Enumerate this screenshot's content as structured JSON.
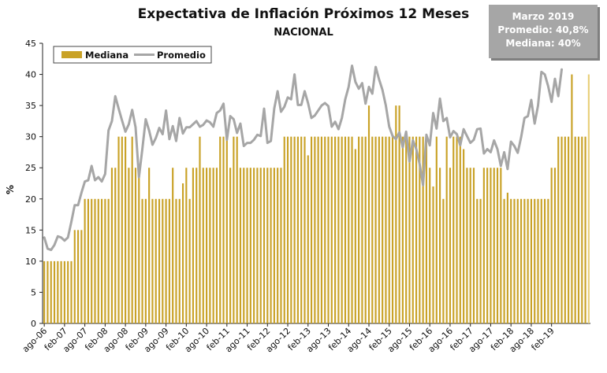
{
  "info_box": {
    "line1": "Marzo 2019",
    "line2": "Promedio: 40,8%",
    "line3": "Mediana: 40%"
  },
  "chart_data": {
    "type": "bar",
    "title": "Expectativa de Inflación Próximos 12 Meses",
    "subtitle": "NACIONAL",
    "ylabel": "%",
    "xlabel": "",
    "ylim": [
      0,
      45
    ],
    "yticks": [
      0,
      5,
      10,
      15,
      20,
      25,
      30,
      35,
      40,
      45
    ],
    "grid": false,
    "legend_position": "top-left",
    "colors": {
      "bars": "#c9a227",
      "bar_highlight": "#e8d07a",
      "line": "#a6a6a6"
    },
    "x_tick_labels": [
      "ago-06",
      "feb-07",
      "ago-07",
      "feb-08",
      "ago-08",
      "feb-09",
      "ago-09",
      "feb-10",
      "ago-10",
      "feb-11",
      "ago-11",
      "feb-12",
      "ago-12",
      "feb-13",
      "ago-13",
      "feb-14",
      "ago-14",
      "feb-15",
      "ago-15",
      "feb-16",
      "ago-16",
      "feb-17",
      "ago-17",
      "feb-18",
      "ago-18",
      "feb-19"
    ],
    "x_tick_every": 6,
    "series": [
      {
        "name": "Mediana",
        "type": "bar",
        "values": [
          10,
          10,
          10,
          10,
          10,
          10,
          10,
          10,
          10,
          15,
          15,
          15,
          20,
          20,
          20,
          20,
          20,
          20,
          20,
          20,
          25,
          25,
          30,
          30,
          30,
          25,
          30,
          25,
          25,
          20,
          20,
          25,
          20,
          20,
          20,
          20,
          20,
          20,
          25,
          20,
          20,
          22.5,
          25,
          20,
          25,
          25,
          30,
          25,
          25,
          25,
          25,
          25,
          30,
          30,
          30,
          25,
          30,
          30,
          25,
          25,
          25,
          25,
          25,
          25,
          25,
          25,
          25,
          25,
          25,
          25,
          25,
          30,
          30,
          30,
          30,
          30,
          30,
          30,
          27,
          30,
          30,
          30,
          30,
          30,
          30,
          30,
          30,
          30,
          30,
          30,
          30,
          30,
          28,
          30,
          30,
          30,
          35,
          30,
          30,
          30,
          30,
          30,
          30,
          30,
          35,
          35,
          30,
          30,
          30,
          30,
          30,
          30,
          30,
          30,
          25,
          22,
          30,
          25,
          20,
          30,
          25,
          30,
          30,
          30,
          28,
          25,
          25,
          25,
          20,
          20,
          25,
          25,
          25,
          25,
          25,
          25,
          20,
          21,
          20,
          20,
          20,
          20,
          20,
          20,
          20,
          20,
          20,
          20,
          20,
          20,
          25,
          25,
          30,
          30,
          30,
          30,
          40,
          30,
          30,
          30,
          30,
          40
        ]
      },
      {
        "name": "Promedio",
        "type": "line",
        "values": [
          13.8,
          12.0,
          11.8,
          12.6,
          14.0,
          13.8,
          13.3,
          13.8,
          16.3,
          19.0,
          19.0,
          21.0,
          22.8,
          23.0,
          25.3,
          23.0,
          23.5,
          22.8,
          24.0,
          31.0,
          32.5,
          36.5,
          34.5,
          32.6,
          30.8,
          32.0,
          34.3,
          31.5,
          23.5,
          28.0,
          32.8,
          31.0,
          28.7,
          29.8,
          31.4,
          30.4,
          34.2,
          29.6,
          31.7,
          29.3,
          33.0,
          30.5,
          31.5,
          31.5,
          32.0,
          32.5,
          31.6,
          31.9,
          32.6,
          32.3,
          31.6,
          33.8,
          34.2,
          35.3,
          29.5,
          33.3,
          32.8,
          30.6,
          32.1,
          28.5,
          29.0,
          29.0,
          29.5,
          30.3,
          30.1,
          34.5,
          29.0,
          29.3,
          34.5,
          37.3,
          34.0,
          34.8,
          36.3,
          36.0,
          40.0,
          35.1,
          35.1,
          37.3,
          35.4,
          33.0,
          33.4,
          34.2,
          35.0,
          35.4,
          34.9,
          31.6,
          32.4,
          31.2,
          33.0,
          36.0,
          38.0,
          41.4,
          38.8,
          37.7,
          38.6,
          35.3,
          38.0,
          36.9,
          41.2,
          39.2,
          37.5,
          35.0,
          31.6,
          30.1,
          29.6,
          30.7,
          28.3,
          30.8,
          26.0,
          29.4,
          28.0,
          25.6,
          22.2,
          30.3,
          28.6,
          33.8,
          31.3,
          36.1,
          32.5,
          33.0,
          29.9,
          30.9,
          30.4,
          28.6,
          31.2,
          30.1,
          29.0,
          29.5,
          31.2,
          31.3,
          27.3,
          28.0,
          27.5,
          29.4,
          28.0,
          25.3,
          27.5,
          24.8,
          29.2,
          28.5,
          27.4,
          29.9,
          33.0,
          33.3,
          35.9,
          32.1,
          35.0,
          40.4,
          40.0,
          38.1,
          35.6,
          39.3,
          36.5,
          40.8
        ]
      }
    ]
  }
}
